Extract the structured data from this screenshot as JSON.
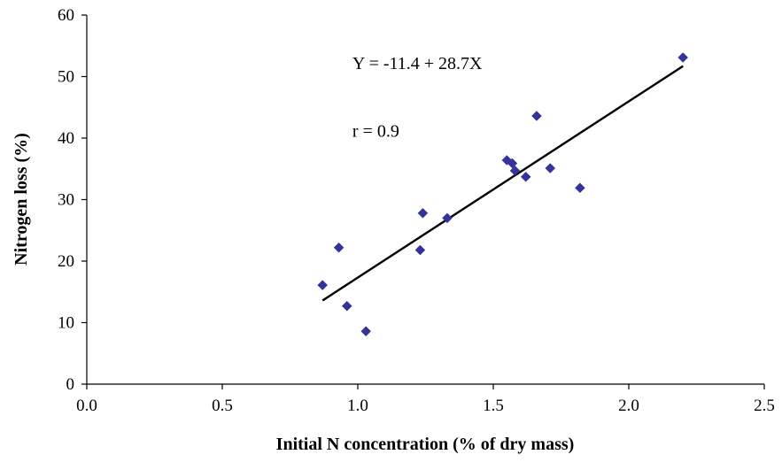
{
  "chart_data": {
    "type": "scatter",
    "title": "",
    "xlabel": "Initial N concentration (% of dry mass)",
    "ylabel": "Nitrogen loss (%)",
    "xlim": [
      0.0,
      2.5
    ],
    "ylim": [
      0,
      60
    ],
    "xticks": [
      "0.0",
      "0.5",
      "1.0",
      "1.5",
      "2.0",
      "2.5"
    ],
    "yticks": [
      "0",
      "10",
      "20",
      "30",
      "40",
      "50",
      "60"
    ],
    "grid": false,
    "legend": "none",
    "marker_color": "#33339a",
    "series": [
      {
        "points": [
          {
            "x": 0.87,
            "y": 16.1
          },
          {
            "x": 0.93,
            "y": 22.2
          },
          {
            "x": 0.96,
            "y": 12.7
          },
          {
            "x": 1.03,
            "y": 8.6
          },
          {
            "x": 1.23,
            "y": 21.8
          },
          {
            "x": 1.24,
            "y": 27.8
          },
          {
            "x": 1.33,
            "y": 27.0
          },
          {
            "x": 1.55,
            "y": 36.4
          },
          {
            "x": 1.57,
            "y": 35.9
          },
          {
            "x": 1.58,
            "y": 34.7
          },
          {
            "x": 1.62,
            "y": 33.7
          },
          {
            "x": 1.66,
            "y": 43.6
          },
          {
            "x": 1.71,
            "y": 35.1
          },
          {
            "x": 1.82,
            "y": 31.9
          },
          {
            "x": 2.2,
            "y": 53.1
          }
        ]
      }
    ],
    "fit_line": {
      "x": [
        0.87,
        2.2
      ],
      "y": [
        13.6,
        51.7
      ]
    },
    "annotations": [
      {
        "id": "equation",
        "text": "Y = -11.4 + 28.7X",
        "x": 0.98,
        "y": 51.2
      },
      {
        "id": "r-value",
        "text": "r = 0.9",
        "x": 0.98,
        "y": 40.2
      }
    ]
  }
}
